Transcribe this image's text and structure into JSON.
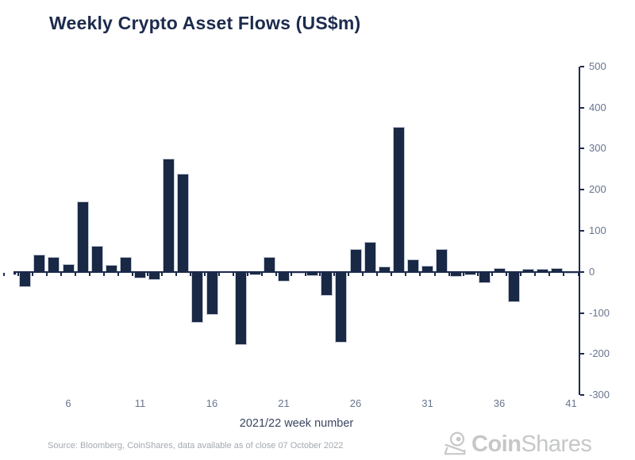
{
  "chart_data": {
    "type": "bar",
    "title": "Weekly Crypto Asset Flows (US$m)",
    "xlabel": "2021/22 week number",
    "x": [
      2,
      3,
      4,
      5,
      6,
      7,
      8,
      9,
      10,
      11,
      12,
      13,
      14,
      15,
      16,
      17,
      18,
      19,
      20,
      21,
      22,
      23,
      24,
      25,
      26,
      27,
      28,
      29,
      30,
      31,
      32,
      33,
      34,
      35,
      36,
      37,
      38,
      39,
      40,
      41
    ],
    "values": [
      -9,
      -37,
      41,
      36,
      19,
      171,
      64,
      17,
      36,
      -17,
      -20,
      276,
      238,
      -125,
      -104,
      0,
      -178,
      -9,
      37,
      -24,
      -4,
      -11,
      -58,
      -172,
      55,
      73,
      12,
      353,
      31,
      14,
      55,
      -13,
      -8,
      -27,
      10,
      -73,
      7,
      8,
      10,
      -4
    ],
    "x_tick_labels": [
      6,
      11,
      16,
      21,
      26,
      31,
      36,
      41
    ],
    "y_ticks": [
      500,
      400,
      300,
      200,
      100,
      0,
      -100,
      -200,
      -300
    ],
    "ylim": [
      -300,
      500
    ],
    "legend": "none",
    "grid": "off",
    "y_axis_side": "right",
    "bar_color": "#192844",
    "bar_edge_color": "#c2c9d6",
    "axis_color": "#1b2a4b"
  },
  "source_note": "Source: Bloomberg, CoinShares, data available as of close 07 October 2022",
  "logo": {
    "coin": "Coin",
    "shares": "Shares",
    "color": "#c6c7c9"
  }
}
